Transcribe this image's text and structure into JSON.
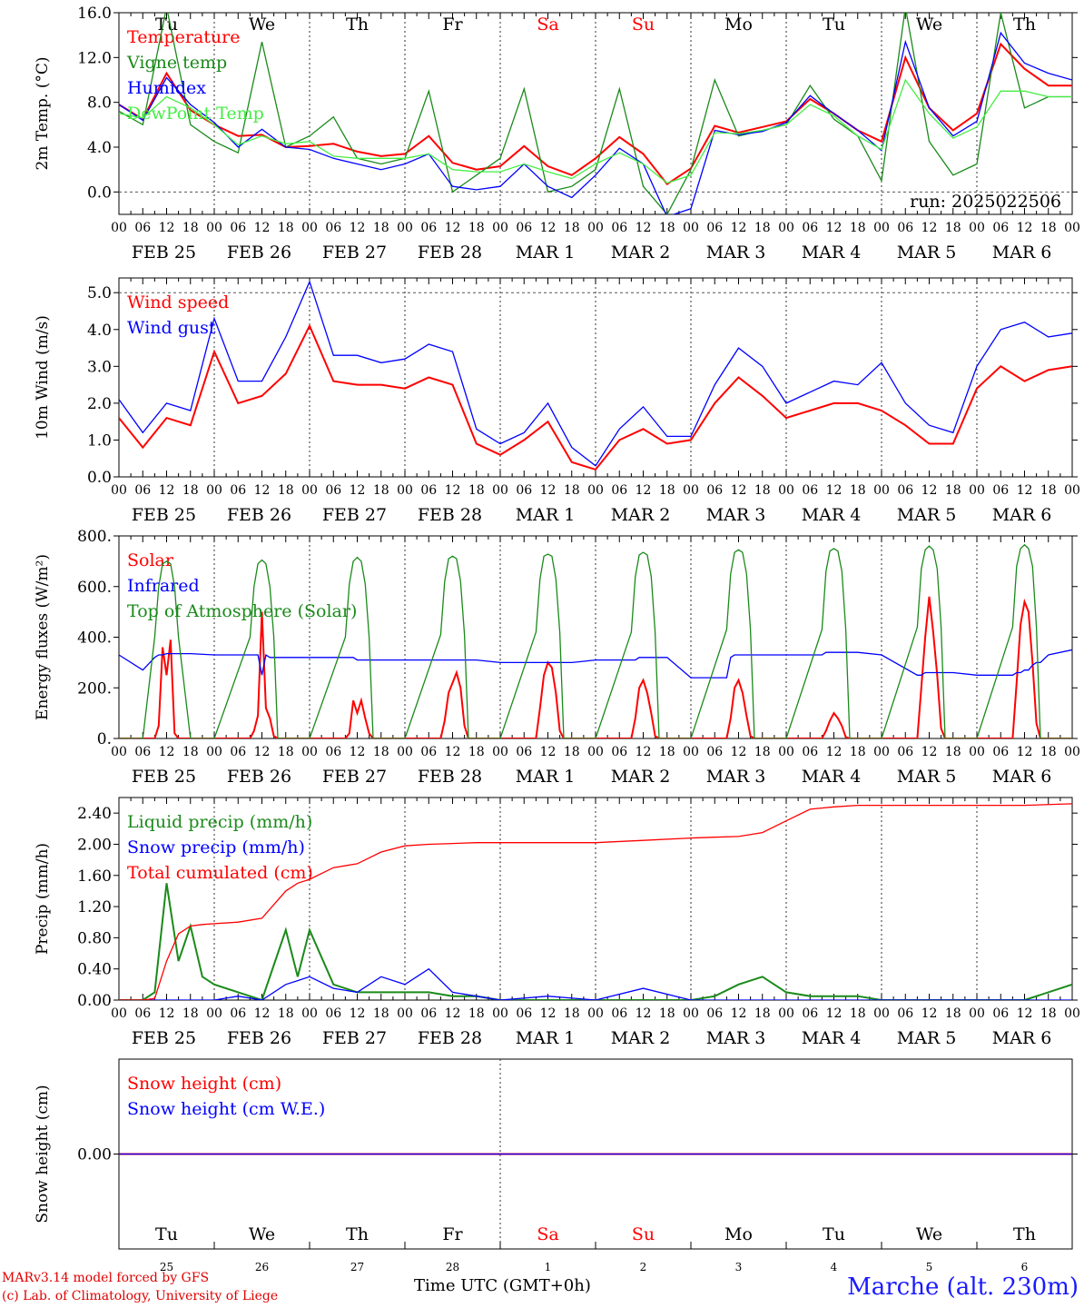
{
  "chart_data": [
    {
      "type": "line",
      "ylabel": "2m Temp. (°C)",
      "ylim": [
        -2,
        16
      ],
      "yticks": [
        "0.0",
        "4.0",
        "8.0",
        "12.0",
        "16.0"
      ],
      "ytick_values": [
        0,
        4,
        8,
        12,
        16
      ],
      "hlines": [
        0
      ],
      "annotation": "run: 2025022506",
      "legend_position": "top-left",
      "x": [
        0,
        6,
        12,
        18,
        24,
        30,
        36,
        42,
        48,
        54,
        60,
        66,
        72,
        78,
        84,
        90,
        96,
        102,
        108,
        114,
        120,
        126,
        132,
        138,
        144,
        150,
        156,
        162,
        168,
        174,
        180,
        186,
        192,
        198,
        204,
        210,
        216,
        222,
        228,
        234,
        240
      ],
      "series": [
        {
          "name": "Temperature",
          "color": "#ff0000",
          "values": [
            7.8,
            6.5,
            10.6,
            7.3,
            6.0,
            5.0,
            5.1,
            4.0,
            4.1,
            4.3,
            3.6,
            3.2,
            3.4,
            5.0,
            2.6,
            2.0,
            2.3,
            4.1,
            2.3,
            1.5,
            3.0,
            4.9,
            3.4,
            0.7,
            2.1,
            5.9,
            5.3,
            5.8,
            6.3,
            8.3,
            7.0,
            5.5,
            4.5,
            12.0,
            7.5,
            5.5,
            7.0,
            13.2,
            11.0,
            9.5,
            9.5
          ]
        },
        {
          "name": "Vigne temp",
          "color": "#1a8a1a",
          "values": [
            7.2,
            6.0,
            16.5,
            6.0,
            4.5,
            3.5,
            13.4,
            4.0,
            5.0,
            6.7,
            3.0,
            2.5,
            3.0,
            9.0,
            0.0,
            1.5,
            3.0,
            9.2,
            0.0,
            0.5,
            2.0,
            9.2,
            0.5,
            -2.0,
            2.0,
            10.0,
            5.0,
            5.5,
            6.0,
            9.5,
            6.5,
            5.0,
            1.0,
            16.5,
            4.5,
            1.5,
            2.5,
            16.0,
            7.5,
            8.5,
            8.5
          ]
        },
        {
          "name": "Humidex",
          "color": "#0000ff",
          "values": [
            7.8,
            6.4,
            10.2,
            7.8,
            6.2,
            4.0,
            5.6,
            4.0,
            3.8,
            3.0,
            2.5,
            2.0,
            2.5,
            3.4,
            0.5,
            0.2,
            0.5,
            2.5,
            0.5,
            -0.5,
            1.5,
            3.9,
            2.5,
            -2.2,
            -1.5,
            5.5,
            5.1,
            5.4,
            6.2,
            8.6,
            7.0,
            5.5,
            3.7,
            13.4,
            7.5,
            5.0,
            6.3,
            14.2,
            11.5,
            10.6,
            10.0
          ]
        },
        {
          "name": "DewPoint Temp",
          "color": "#44ee44",
          "values": [
            7.0,
            6.6,
            8.5,
            7.5,
            6.0,
            4.2,
            5.0,
            4.3,
            4.5,
            3.2,
            3.0,
            3.0,
            3.0,
            3.4,
            2.0,
            1.8,
            1.8,
            2.5,
            1.8,
            1.2,
            2.5,
            3.5,
            2.5,
            0.8,
            1.5,
            5.3,
            5.2,
            5.5,
            6.0,
            7.8,
            6.8,
            5.0,
            3.8,
            10.0,
            7.0,
            4.8,
            5.8,
            9.0,
            9.0,
            8.5,
            8.5
          ]
        }
      ]
    },
    {
      "type": "line",
      "ylabel": "10m Wind (m/s)",
      "ylim": [
        0,
        5.4
      ],
      "yticks": [
        "0.0",
        "1.0",
        "2.0",
        "3.0",
        "4.0",
        "5.0"
      ],
      "ytick_values": [
        0,
        1,
        2,
        3,
        4,
        5
      ],
      "hlines": [
        5
      ],
      "legend_position": "top-left",
      "x": [
        0,
        6,
        12,
        18,
        24,
        30,
        36,
        42,
        48,
        54,
        60,
        66,
        72,
        78,
        84,
        90,
        96,
        102,
        108,
        114,
        120,
        126,
        132,
        138,
        144,
        150,
        156,
        162,
        168,
        174,
        180,
        186,
        192,
        198,
        204,
        210,
        216,
        222,
        228,
        234,
        240
      ],
      "series": [
        {
          "name": "Wind speed",
          "color": "#ff0000",
          "values": [
            1.6,
            0.8,
            1.6,
            1.4,
            3.4,
            2.0,
            2.2,
            2.8,
            4.1,
            2.6,
            2.5,
            2.5,
            2.4,
            2.7,
            2.5,
            0.9,
            0.6,
            1.0,
            1.5,
            0.4,
            0.2,
            1.0,
            1.3,
            0.9,
            1.0,
            2.0,
            2.7,
            2.2,
            1.6,
            1.8,
            2.0,
            2.0,
            1.8,
            1.4,
            0.9,
            0.9,
            2.4,
            3.0,
            2.6,
            2.9,
            3.0
          ]
        },
        {
          "name": "Wind gust",
          "color": "#0000ff",
          "values": [
            2.1,
            1.2,
            2.0,
            1.8,
            4.3,
            2.6,
            2.6,
            3.8,
            5.3,
            3.3,
            3.3,
            3.1,
            3.2,
            3.6,
            3.4,
            1.3,
            0.9,
            1.2,
            2.0,
            0.8,
            0.3,
            1.3,
            1.9,
            1.1,
            1.1,
            2.5,
            3.5,
            3.0,
            2.0,
            2.3,
            2.6,
            2.5,
            3.1,
            2.0,
            1.4,
            1.2,
            3.0,
            4.0,
            4.2,
            3.8,
            3.9
          ]
        }
      ]
    },
    {
      "type": "line",
      "ylabel": "Energy fluxes (W/m²)",
      "ylim": [
        0,
        800
      ],
      "yticks": [
        "0.",
        "200.",
        "400.",
        "600.",
        "800."
      ],
      "ytick_values": [
        0,
        200,
        400,
        600,
        800
      ],
      "legend_position": "top-left",
      "x": [
        0,
        6,
        9,
        10,
        11,
        12,
        13,
        14,
        15,
        18,
        24,
        33,
        34,
        35,
        36,
        37,
        38,
        39,
        40,
        42,
        48,
        57,
        58,
        59,
        60,
        61,
        62,
        63,
        64,
        66,
        72,
        81,
        82,
        83,
        84,
        85,
        86,
        87,
        88,
        90,
        96,
        105,
        106,
        107,
        108,
        109,
        110,
        111,
        112,
        114,
        120,
        129,
        130,
        131,
        132,
        133,
        134,
        135,
        136,
        138,
        144,
        153,
        154,
        155,
        156,
        157,
        158,
        159,
        160,
        162,
        168,
        177,
        178,
        179,
        180,
        181,
        182,
        183,
        184,
        186,
        192,
        201,
        202,
        203,
        204,
        205,
        206,
        207,
        208,
        210,
        216,
        225,
        226,
        227,
        228,
        229,
        230,
        231,
        232,
        234,
        240
      ],
      "series": [
        {
          "name": "Solar",
          "color": "#ff0000",
          "values": [
            0,
            0,
            0,
            50,
            360,
            250,
            390,
            20,
            0,
            0,
            0,
            0,
            30,
            90,
            500,
            120,
            80,
            10,
            0,
            0,
            0,
            0,
            20,
            150,
            100,
            150,
            80,
            20,
            0,
            0,
            0,
            0,
            70,
            180,
            220,
            260,
            200,
            50,
            0,
            0,
            0,
            0,
            120,
            250,
            300,
            280,
            180,
            30,
            0,
            0,
            0,
            0,
            80,
            200,
            230,
            180,
            100,
            10,
            0,
            0,
            0,
            0,
            80,
            200,
            230,
            180,
            90,
            10,
            0,
            0,
            0,
            0,
            30,
            70,
            100,
            80,
            50,
            5,
            0,
            0,
            0,
            0,
            200,
            400,
            560,
            420,
            250,
            40,
            0,
            0,
            0,
            0,
            220,
            450,
            540,
            500,
            300,
            60,
            0,
            0,
            0
          ]
        },
        {
          "name": "Infrared",
          "color": "#0000ff",
          "values": [
            330,
            270,
            320,
            330,
            330,
            335,
            335,
            335,
            335,
            335,
            330,
            330,
            330,
            330,
            250,
            330,
            320,
            320,
            320,
            320,
            320,
            320,
            320,
            320,
            310,
            310,
            310,
            310,
            310,
            310,
            310,
            310,
            310,
            310,
            310,
            310,
            310,
            310,
            310,
            310,
            300,
            300,
            300,
            300,
            300,
            300,
            300,
            300,
            300,
            300,
            310,
            310,
            310,
            320,
            320,
            320,
            320,
            320,
            320,
            320,
            240,
            240,
            320,
            330,
            330,
            330,
            330,
            330,
            330,
            330,
            330,
            330,
            340,
            340,
            340,
            340,
            340,
            340,
            340,
            340,
            330,
            250,
            250,
            260,
            260,
            260,
            260,
            260,
            260,
            260,
            250,
            250,
            260,
            260,
            270,
            270,
            290,
            300,
            300,
            330,
            350
          ]
        },
        {
          "name": "Top of Atmosphere (Solar)",
          "color": "#1a8a1a",
          "values": [
            0,
            0,
            400,
            600,
            690,
            700,
            690,
            600,
            400,
            0,
            0,
            400,
            600,
            690,
            705,
            690,
            600,
            400,
            0,
            0,
            0,
            400,
            610,
            700,
            715,
            700,
            610,
            400,
            0,
            0,
            0,
            410,
            620,
            710,
            720,
            710,
            620,
            410,
            0,
            0,
            0,
            420,
            630,
            720,
            728,
            720,
            630,
            420,
            0,
            0,
            0,
            420,
            640,
            725,
            735,
            725,
            640,
            420,
            0,
            0,
            0,
            430,
            650,
            735,
            745,
            735,
            650,
            430,
            0,
            0,
            0,
            430,
            660,
            740,
            750,
            740,
            660,
            430,
            0,
            0,
            0,
            440,
            670,
            745,
            760,
            745,
            670,
            440,
            0,
            0,
            0,
            440,
            680,
            750,
            765,
            750,
            680,
            440,
            0,
            0,
            0
          ]
        }
      ]
    },
    {
      "type": "line",
      "ylabel": "Precip (mm/h)",
      "ylim": [
        0,
        2.6
      ],
      "yticks": [
        "0.00",
        "0.40",
        "0.80",
        "1.20",
        "1.60",
        "2.00",
        "2.40"
      ],
      "ytick_values": [
        0,
        0.4,
        0.8,
        1.2,
        1.6,
        2.0,
        2.4
      ],
      "legend_position": "top-left",
      "x": [
        0,
        6,
        9,
        12,
        15,
        18,
        21,
        24,
        30,
        36,
        42,
        45,
        48,
        54,
        60,
        66,
        72,
        78,
        84,
        90,
        96,
        108,
        120,
        132,
        144,
        150,
        156,
        162,
        168,
        174,
        180,
        186,
        192,
        204,
        216,
        228,
        240
      ],
      "series": [
        {
          "name": "Liquid precip (mm/h)",
          "color": "#1a8a1a",
          "values": [
            0,
            0,
            0.1,
            1.5,
            0.5,
            0.95,
            0.3,
            0.2,
            0.1,
            0,
            0.9,
            0.3,
            0.9,
            0.2,
            0.1,
            0.1,
            0.1,
            0.1,
            0.05,
            0.05,
            0,
            0,
            0,
            0,
            0,
            0.05,
            0.2,
            0.3,
            0.1,
            0.05,
            0.05,
            0.05,
            0,
            0,
            0,
            0,
            0.2
          ]
        },
        {
          "name": "Snow precip (mm/h)",
          "color": "#0000ff",
          "values": [
            0,
            0,
            0,
            0,
            0,
            0,
            0,
            0,
            0.05,
            0,
            0.2,
            0.25,
            0.3,
            0.15,
            0.1,
            0.3,
            0.2,
            0.4,
            0.1,
            0.05,
            0,
            0.05,
            0,
            0.15,
            0,
            0,
            0,
            0,
            0,
            0,
            0,
            0,
            0,
            0,
            0,
            0,
            0
          ]
        },
        {
          "name": "Total cumulated (cm)",
          "color": "#ff0000",
          "values": [
            0,
            0,
            0.02,
            0.5,
            0.85,
            0.95,
            0.97,
            0.98,
            1.0,
            1.05,
            1.4,
            1.5,
            1.55,
            1.7,
            1.75,
            1.9,
            1.98,
            2.0,
            2.01,
            2.02,
            2.02,
            2.02,
            2.02,
            2.05,
            2.08,
            2.09,
            2.1,
            2.15,
            2.3,
            2.45,
            2.48,
            2.5,
            2.5,
            2.5,
            2.5,
            2.5,
            2.52
          ]
        }
      ]
    },
    {
      "type": "line",
      "ylabel": "Snow height (cm)",
      "ylim": [
        -1,
        1
      ],
      "yticks": [
        "0.00"
      ],
      "ytick_values": [
        0
      ],
      "legend_position": "top-left",
      "x": [
        0,
        240
      ],
      "series": [
        {
          "name": "Snow height (cm)",
          "color": "#ff0000",
          "values": [
            0,
            0
          ]
        },
        {
          "name": "Snow height (cm W.E.)",
          "color": "#0000ff",
          "values": [
            0,
            0
          ]
        }
      ]
    }
  ],
  "axis": {
    "xlim": [
      0,
      240
    ],
    "hour_labels": [
      "00",
      "06",
      "12",
      "18"
    ],
    "final_hour_label": "00",
    "date_labels": [
      "FEB 25",
      "FEB 26",
      "FEB 27",
      "FEB 28",
      "MAR  1",
      "MAR  2",
      "MAR  3",
      "MAR  4",
      "MAR  5",
      "MAR  6"
    ],
    "weekdays": [
      "Tu",
      "We",
      "Th",
      "Fr",
      "Sa",
      "Su",
      "Mo",
      "Tu",
      "We",
      "Th"
    ],
    "weekend_color": "#ff0000",
    "weekday_color": "#000000",
    "day_numbers": [
      "25",
      "26",
      "27",
      "28",
      "1",
      "2",
      "3",
      "4",
      "5",
      "6"
    ],
    "month_label": "MAR"
  },
  "footer": {
    "credit_line1": "MARv3.14 model forced by GFS",
    "credit_line2": "(c) Lab. of Climatology, University of Liege",
    "xaxis_title": "Time UTC (GMT+0h)",
    "station": "Marche (alt. 230m)"
  }
}
